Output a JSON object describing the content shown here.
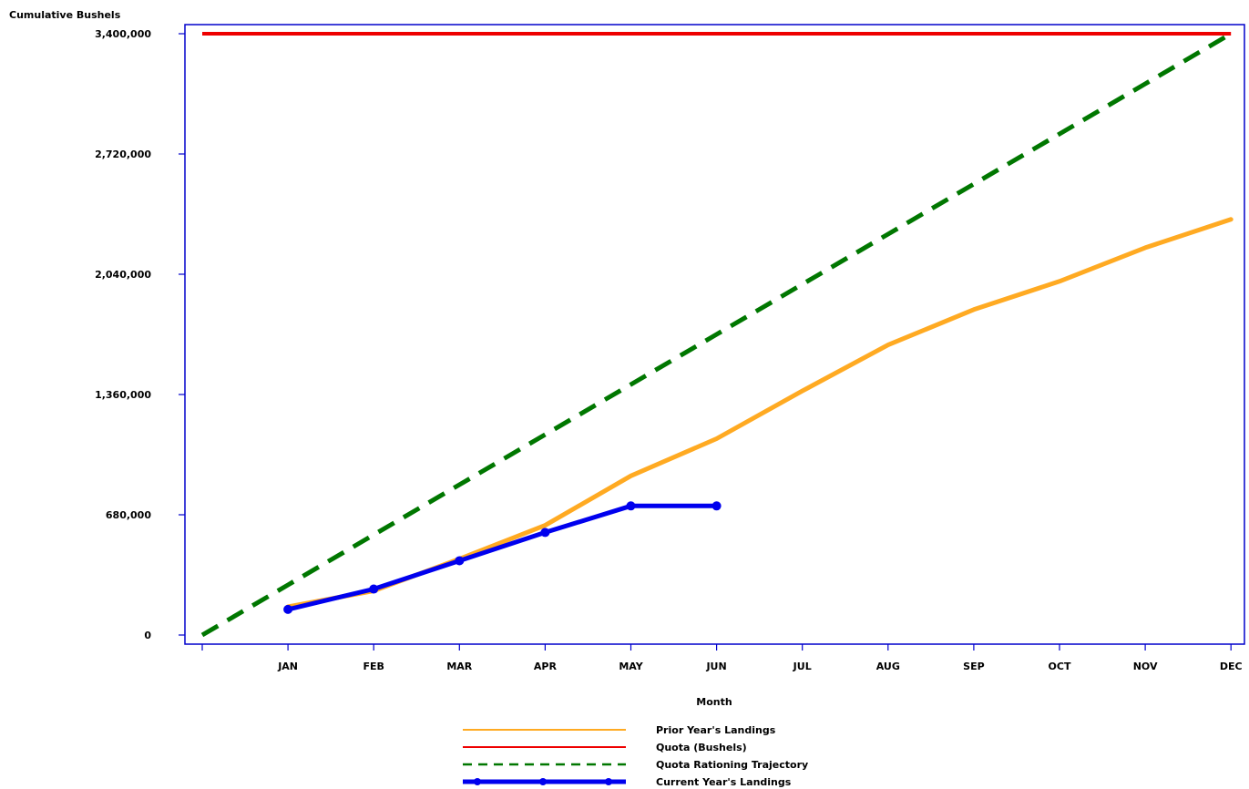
{
  "chart_data": {
    "type": "line",
    "ylabel": "Cumulative Bushels",
    "xlabel": "Month",
    "x": [
      "",
      "JAN",
      "FEB",
      "MAR",
      "APR",
      "MAY",
      "JUN",
      "JUL",
      "AUG",
      "SEP",
      "OCT",
      "NOV",
      "DEC"
    ],
    "ylim": [
      0,
      3400000
    ],
    "yticks": [
      0,
      680000,
      1360000,
      2040000,
      2720000,
      3400000
    ],
    "ytick_labels": [
      "0",
      "680,000",
      "1,360,000",
      "2,040,000",
      "2,720,000",
      "3,400,000"
    ],
    "grid": false,
    "legend_position": "bottom",
    "series": [
      {
        "name": "Prior Year's Landings",
        "color": "#FFAA22",
        "style": "solid",
        "values": [
          null,
          160000,
          250000,
          430000,
          620000,
          900000,
          1110000,
          1380000,
          1640000,
          1840000,
          2000000,
          2190000,
          2350000
        ]
      },
      {
        "name": "Quota (Bushels)",
        "color": "#EE0000",
        "style": "solid",
        "values": [
          3400000,
          3400000,
          3400000,
          3400000,
          3400000,
          3400000,
          3400000,
          3400000,
          3400000,
          3400000,
          3400000,
          3400000,
          3400000
        ]
      },
      {
        "name": "Quota Rationing Trajectory",
        "color": "#007700",
        "style": "dashed",
        "values": [
          0,
          283333,
          566667,
          850000,
          1133333,
          1416667,
          1700000,
          1983333,
          2266667,
          2550000,
          2833333,
          3116667,
          3400000
        ]
      },
      {
        "name": "Current Year's Landings",
        "color": "#0000EE",
        "style": "solid-markers",
        "values": [
          null,
          145000,
          260000,
          420000,
          580000,
          730000,
          730000,
          null,
          null,
          null,
          null,
          null,
          null
        ]
      }
    ]
  }
}
